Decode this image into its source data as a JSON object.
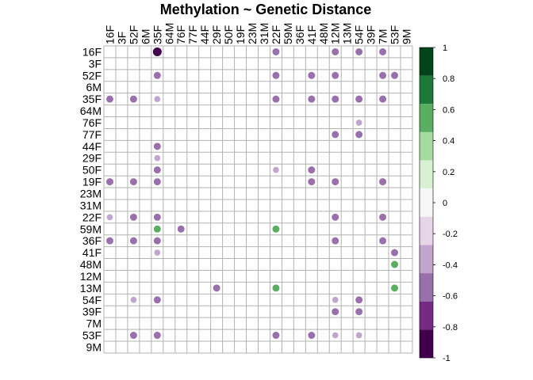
{
  "chart_data": {
    "type": "heatmap",
    "title": "Methylation ~ Genetic Distance",
    "rows": [
      "16F",
      "3F",
      "52F",
      "6M",
      "35F",
      "64M",
      "76F",
      "77F",
      "44F",
      "29F",
      "50F",
      "19F",
      "23M",
      "31M",
      "22F",
      "59M",
      "36F",
      "41F",
      "48M",
      "12M",
      "13M",
      "54F",
      "39F",
      "7M",
      "53F",
      "9M"
    ],
    "columns": [
      "16F",
      "3F",
      "52F",
      "6M",
      "35F",
      "64M",
      "76F",
      "77F",
      "44F",
      "29F",
      "50F",
      "19F",
      "23M",
      "31M",
      "22F",
      "59M",
      "36F",
      "41F",
      "48M",
      "12M",
      "13M",
      "54F",
      "39F",
      "7M",
      "53F",
      "9M"
    ],
    "value_range": [
      -1,
      1
    ],
    "colorbar_ticks": [
      1,
      0.8,
      0.6,
      0.4,
      0.2,
      0,
      -0.2,
      -0.4,
      -0.6,
      -0.8,
      -1
    ],
    "colorbar_colors": [
      "#00441b",
      "#1b7837",
      "#5aae61",
      "#a6dba0",
      "#d9f0d3",
      "#f7f7f7",
      "#e7d4e8",
      "#c2a5cf",
      "#9970ab",
      "#762a83",
      "#40004b"
    ],
    "grid": true,
    "legend_position": "right",
    "cells": [
      {
        "row": "16F",
        "col": "35F",
        "value": -0.82
      },
      {
        "row": "16F",
        "col": "22F",
        "value": -0.5
      },
      {
        "row": "16F",
        "col": "12M",
        "value": -0.5
      },
      {
        "row": "16F",
        "col": "54F",
        "value": -0.5
      },
      {
        "row": "16F",
        "col": "7M",
        "value": -0.5
      },
      {
        "row": "52F",
        "col": "35F",
        "value": -0.5
      },
      {
        "row": "52F",
        "col": "22F",
        "value": -0.5
      },
      {
        "row": "52F",
        "col": "41F",
        "value": -0.5
      },
      {
        "row": "52F",
        "col": "12M",
        "value": -0.5
      },
      {
        "row": "52F",
        "col": "7M",
        "value": -0.5
      },
      {
        "row": "52F",
        "col": "53F",
        "value": -0.5
      },
      {
        "row": "35F",
        "col": "16F",
        "value": -0.5
      },
      {
        "row": "35F",
        "col": "52F",
        "value": -0.5
      },
      {
        "row": "35F",
        "col": "35F",
        "value": -0.3
      },
      {
        "row": "35F",
        "col": "22F",
        "value": -0.5
      },
      {
        "row": "35F",
        "col": "41F",
        "value": -0.5
      },
      {
        "row": "35F",
        "col": "12M",
        "value": -0.5
      },
      {
        "row": "35F",
        "col": "54F",
        "value": -0.5
      },
      {
        "row": "35F",
        "col": "7M",
        "value": -0.5
      },
      {
        "row": "76F",
        "col": "54F",
        "value": -0.3
      },
      {
        "row": "77F",
        "col": "12M",
        "value": -0.5
      },
      {
        "row": "77F",
        "col": "54F",
        "value": -0.5
      },
      {
        "row": "44F",
        "col": "35F",
        "value": -0.5
      },
      {
        "row": "29F",
        "col": "35F",
        "value": -0.3
      },
      {
        "row": "50F",
        "col": "35F",
        "value": -0.5
      },
      {
        "row": "50F",
        "col": "22F",
        "value": -0.3
      },
      {
        "row": "50F",
        "col": "41F",
        "value": -0.5
      },
      {
        "row": "19F",
        "col": "16F",
        "value": -0.5
      },
      {
        "row": "19F",
        "col": "52F",
        "value": -0.5
      },
      {
        "row": "19F",
        "col": "35F",
        "value": -0.5
      },
      {
        "row": "19F",
        "col": "41F",
        "value": -0.5
      },
      {
        "row": "19F",
        "col": "12M",
        "value": -0.5
      },
      {
        "row": "19F",
        "col": "7M",
        "value": -0.5
      },
      {
        "row": "22F",
        "col": "16F",
        "value": -0.3
      },
      {
        "row": "22F",
        "col": "52F",
        "value": -0.5
      },
      {
        "row": "22F",
        "col": "35F",
        "value": -0.5
      },
      {
        "row": "22F",
        "col": "12M",
        "value": -0.5
      },
      {
        "row": "22F",
        "col": "7M",
        "value": -0.5
      },
      {
        "row": "59M",
        "col": "35F",
        "value": 0.5
      },
      {
        "row": "59M",
        "col": "76F",
        "value": -0.5
      },
      {
        "row": "59M",
        "col": "22F",
        "value": 0.5
      },
      {
        "row": "36F",
        "col": "16F",
        "value": -0.5
      },
      {
        "row": "36F",
        "col": "52F",
        "value": -0.5
      },
      {
        "row": "36F",
        "col": "35F",
        "value": -0.5
      },
      {
        "row": "36F",
        "col": "12M",
        "value": -0.5
      },
      {
        "row": "36F",
        "col": "7M",
        "value": -0.5
      },
      {
        "row": "41F",
        "col": "35F",
        "value": -0.3
      },
      {
        "row": "41F",
        "col": "53F",
        "value": -0.5
      },
      {
        "row": "48M",
        "col": "53F",
        "value": 0.5
      },
      {
        "row": "13M",
        "col": "29F",
        "value": -0.5
      },
      {
        "row": "13M",
        "col": "22F",
        "value": 0.5
      },
      {
        "row": "13M",
        "col": "53F",
        "value": 0.5
      },
      {
        "row": "54F",
        "col": "52F",
        "value": -0.3
      },
      {
        "row": "54F",
        "col": "35F",
        "value": -0.5
      },
      {
        "row": "54F",
        "col": "12M",
        "value": -0.3
      },
      {
        "row": "54F",
        "col": "54F",
        "value": -0.5
      },
      {
        "row": "39F",
        "col": "12M",
        "value": -0.5
      },
      {
        "row": "39F",
        "col": "54F",
        "value": -0.5
      },
      {
        "row": "53F",
        "col": "52F",
        "value": -0.5
      },
      {
        "row": "53F",
        "col": "35F",
        "value": -0.5
      },
      {
        "row": "53F",
        "col": "22F",
        "value": -0.5
      },
      {
        "row": "53F",
        "col": "41F",
        "value": -0.5
      },
      {
        "row": "53F",
        "col": "12M",
        "value": -0.3
      },
      {
        "row": "53F",
        "col": "54F",
        "value": -0.3
      }
    ]
  }
}
